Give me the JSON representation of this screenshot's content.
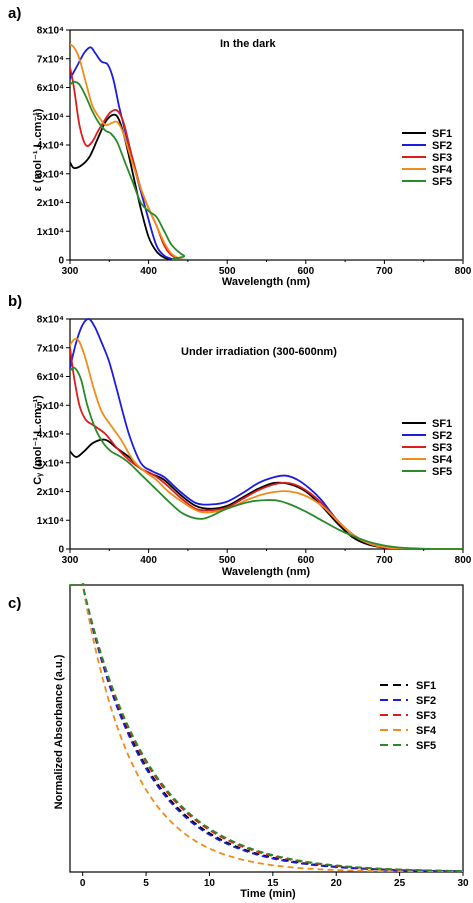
{
  "chart_data": [
    {
      "panel": "a)",
      "type": "line",
      "annotation": "In the dark",
      "xlabel": "Wavelength (nm)",
      "ylabel": "ε (mol⁻¹.L.cm⁻¹)",
      "xlim": [
        300,
        800
      ],
      "ylim": [
        0,
        80000
      ],
      "xticks": [
        "300",
        "400",
        "500",
        "600",
        "700",
        "800"
      ],
      "yticks": [
        "0",
        "1x10⁴",
        "2x10⁴",
        "3x10⁴",
        "4x10⁴",
        "5x10⁴",
        "6x10⁴",
        "7x10⁴",
        "8x10⁴"
      ],
      "legend": "right",
      "series": [
        {
          "name": "SF1",
          "color": "#000000",
          "x": [
            300,
            305,
            315,
            325,
            335,
            345,
            355,
            362,
            370,
            380,
            390,
            400,
            410,
            420,
            430,
            445,
            460,
            800
          ],
          "y": [
            34000,
            32000,
            33000,
            36000,
            42000,
            48000,
            50500,
            49000,
            42000,
            30000,
            18000,
            8000,
            3000,
            800,
            200,
            0,
            0,
            0
          ]
        },
        {
          "name": "SF2",
          "color": "#1c1cdd",
          "x": [
            300,
            310,
            318,
            326,
            332,
            340,
            348,
            355,
            362,
            370,
            380,
            390,
            400,
            410,
            420,
            430,
            445,
            460,
            800
          ],
          "y": [
            63000,
            68000,
            72000,
            74000,
            72000,
            69000,
            68000,
            63000,
            54000,
            45000,
            34000,
            24000,
            14000,
            5000,
            1500,
            400,
            0,
            0,
            0
          ]
        },
        {
          "name": "SF3",
          "color": "#dd1c1c",
          "x": [
            300,
            305,
            312,
            320,
            328,
            336,
            345,
            352,
            360,
            368,
            378,
            390,
            400,
            410,
            420,
            430,
            445,
            460,
            800
          ],
          "y": [
            67000,
            60000,
            47000,
            40000,
            41000,
            45000,
            49000,
            51500,
            52000,
            48000,
            37000,
            25000,
            18000,
            12000,
            5000,
            1500,
            0,
            0,
            0
          ]
        },
        {
          "name": "SF4",
          "color": "#f08c1c",
          "x": [
            300,
            305,
            312,
            320,
            328,
            336,
            345,
            352,
            360,
            368,
            378,
            390,
            400,
            410,
            420,
            430,
            445,
            460,
            800
          ],
          "y": [
            75000,
            74000,
            70000,
            62000,
            54000,
            50000,
            47000,
            47500,
            48000,
            44000,
            35000,
            25000,
            18000,
            12000,
            6000,
            2000,
            0,
            0,
            0
          ]
        },
        {
          "name": "SF5",
          "color": "#2a8a2a",
          "x": [
            300,
            305,
            312,
            320,
            328,
            336,
            345,
            352,
            360,
            370,
            380,
            390,
            400,
            410,
            420,
            430,
            445,
            460,
            800
          ],
          "y": [
            61000,
            62000,
            61000,
            57000,
            52000,
            48000,
            45000,
            44000,
            41000,
            34000,
            27000,
            20000,
            17000,
            15000,
            10000,
            5000,
            1500,
            0,
            0
          ]
        }
      ]
    },
    {
      "panel": "b)",
      "type": "line",
      "annotation": "Under irradiation (300-600nm)",
      "xlabel": "Wavelength (nm)",
      "ylabel": "Cᵧ (mol⁻¹.L.cm⁻¹)",
      "xlim": [
        300,
        800
      ],
      "ylim": [
        0,
        80000
      ],
      "xticks": [
        "300",
        "400",
        "500",
        "600",
        "700",
        "800"
      ],
      "yticks": [
        "0",
        "1x10⁴",
        "2x10⁴",
        "3x10⁴",
        "4x10⁴",
        "5x10⁴",
        "6x10⁴",
        "7x10⁴",
        "8x10⁴"
      ],
      "legend": "right",
      "series": [
        {
          "name": "SF1",
          "color": "#000000",
          "x": [
            300,
            308,
            318,
            330,
            345,
            360,
            375,
            390,
            405,
            420,
            440,
            460,
            480,
            500,
            520,
            540,
            560,
            580,
            600,
            620,
            640,
            660,
            680,
            700,
            720,
            800
          ],
          "y": [
            34000,
            32000,
            34000,
            37000,
            38000,
            35000,
            32000,
            28000,
            26000,
            24000,
            19000,
            15000,
            14000,
            15000,
            18000,
            21000,
            23000,
            22500,
            20000,
            15000,
            9000,
            4000,
            1500,
            500,
            0,
            0
          ]
        },
        {
          "name": "SF2",
          "color": "#1c1cdd",
          "x": [
            300,
            308,
            316,
            324,
            332,
            340,
            350,
            360,
            375,
            390,
            405,
            420,
            440,
            460,
            480,
            500,
            520,
            540,
            560,
            575,
            590,
            605,
            620,
            640,
            660,
            680,
            700,
            720,
            800
          ],
          "y": [
            63000,
            72000,
            78000,
            80000,
            77000,
            72000,
            65000,
            55000,
            40000,
            30000,
            27000,
            25000,
            20000,
            16000,
            15500,
            16500,
            19500,
            23000,
            25000,
            25500,
            24000,
            21000,
            17000,
            10000,
            5000,
            2000,
            500,
            0,
            0
          ]
        },
        {
          "name": "SF3",
          "color": "#dd1c1c",
          "x": [
            300,
            305,
            312,
            320,
            330,
            345,
            360,
            375,
            390,
            405,
            420,
            440,
            460,
            480,
            500,
            520,
            540,
            560,
            575,
            590,
            605,
            620,
            640,
            660,
            680,
            700,
            720,
            800
          ],
          "y": [
            70000,
            60000,
            50000,
            45000,
            43000,
            40000,
            35000,
            31000,
            28000,
            26000,
            23000,
            18000,
            14000,
            13500,
            14500,
            17500,
            20500,
            22500,
            23000,
            22000,
            19500,
            16000,
            10000,
            5000,
            2000,
            500,
            0,
            0
          ]
        },
        {
          "name": "SF4",
          "color": "#f08c1c",
          "x": [
            300,
            306,
            312,
            320,
            330,
            340,
            352,
            365,
            380,
            395,
            410,
            425,
            445,
            465,
            485,
            505,
            525,
            545,
            565,
            580,
            595,
            610,
            625,
            645,
            665,
            685,
            705,
            725,
            800
          ],
          "y": [
            71000,
            73000,
            72000,
            66000,
            56000,
            48000,
            43000,
            38000,
            31000,
            27000,
            24000,
            20000,
            16000,
            13000,
            13000,
            14500,
            17000,
            19000,
            20000,
            20000,
            19000,
            17000,
            14000,
            8500,
            4000,
            1500,
            500,
            0,
            0
          ]
        },
        {
          "name": "SF5",
          "color": "#2a8a2a",
          "x": [
            300,
            306,
            314,
            322,
            332,
            342,
            352,
            362,
            375,
            390,
            405,
            420,
            440,
            455,
            468,
            480,
            495,
            510,
            530,
            550,
            565,
            580,
            600,
            620,
            640,
            660,
            680,
            700,
            720,
            740,
            760,
            780,
            800
          ],
          "y": [
            62000,
            63000,
            59000,
            50000,
            42000,
            37000,
            34000,
            32500,
            30000,
            26000,
            22000,
            18000,
            13000,
            11000,
            10500,
            11500,
            13500,
            15000,
            16500,
            17000,
            16800,
            15500,
            13000,
            10000,
            7000,
            4500,
            2500,
            1200,
            500,
            200,
            0,
            0,
            0
          ]
        }
      ]
    },
    {
      "panel": "c)",
      "type": "line",
      "xlabel": "Time (min)",
      "ylabel": "Normalized Absorbance (a.u.)",
      "xlim": [
        -1,
        30
      ],
      "ylim": [
        0,
        1
      ],
      "xticks": [
        "0",
        "5",
        "10",
        "15",
        "20",
        "25",
        "30"
      ],
      "yticks": [],
      "legend": "right",
      "line_style": "dashed",
      "series": [
        {
          "name": "SF1",
          "color": "#000000",
          "decay_constant_min": 5.0
        },
        {
          "name": "SF2",
          "color": "#1c1cdd",
          "decay_constant_min": 4.9
        },
        {
          "name": "SF3",
          "color": "#dd1c1c",
          "decay_constant_min": 5.2
        },
        {
          "name": "SF4",
          "color": "#f08c1c",
          "decay_constant_min": 4.0
        },
        {
          "name": "SF5",
          "color": "#2a8a2a",
          "decay_constant_min": 5.3
        }
      ]
    }
  ]
}
